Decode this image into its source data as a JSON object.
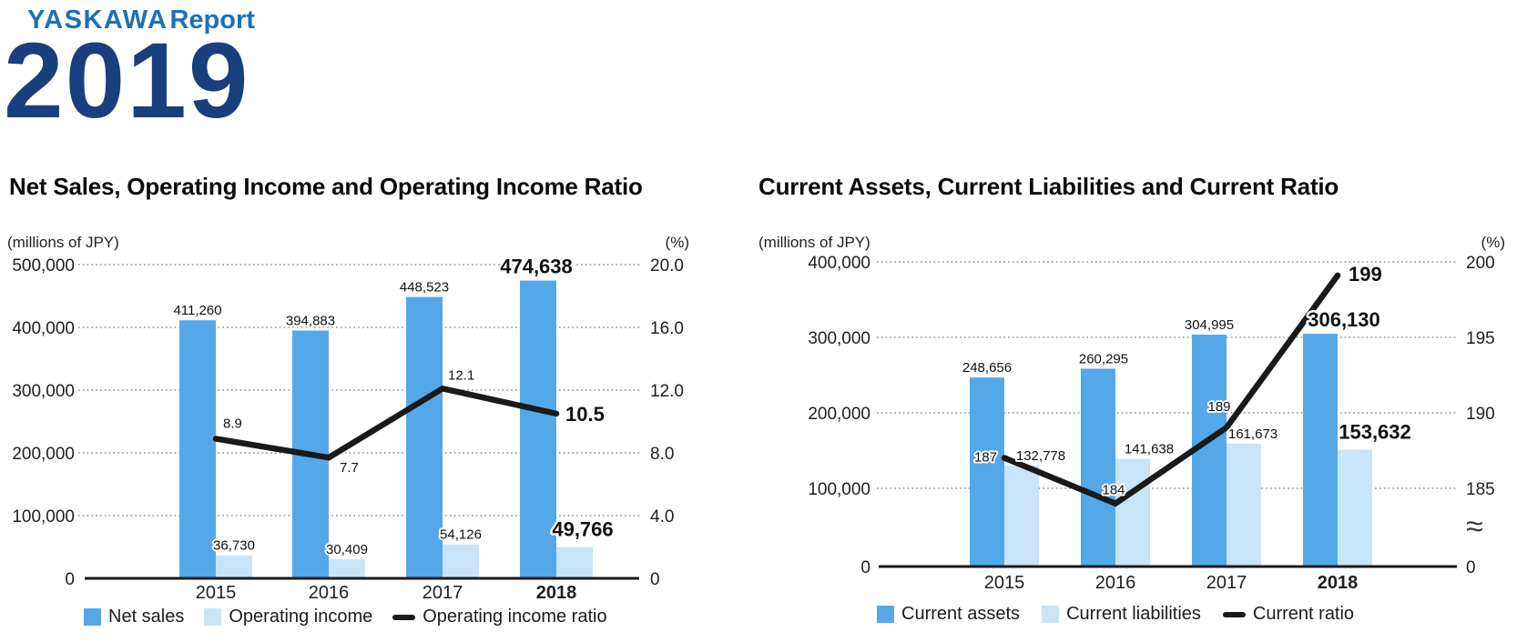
{
  "logo": {
    "brand": "YASKAWA",
    "suffix": "Report",
    "year": "2019"
  },
  "colors": {
    "bar_primary": "#54A8E8",
    "bar_secondary": "#C8E4F8",
    "line": "#1a1a1a",
    "logo_blue": "#1b71ba",
    "logo_navy": "#1a3f7e",
    "grid": "#787878"
  },
  "chart_data": [
    {
      "type": "bar",
      "title": "Net Sales, Operating Income and Operating Income Ratio",
      "legend_position": "bottom",
      "grid": "dotted-horizontal",
      "categories": [
        "2015",
        "2016",
        "2017",
        "2018"
      ],
      "left_axis": {
        "unit": "(millions of JPY)",
        "ticks": [
          "500,000",
          "400,000",
          "300,000",
          "200,000",
          "100,000",
          "0"
        ],
        "range": [
          0,
          500000
        ]
      },
      "right_axis": {
        "unit": "(%)",
        "ticks": [
          "20.0",
          "16.0",
          "12.0",
          "8.0",
          "4.0",
          "0"
        ],
        "range": [
          0,
          20
        ]
      },
      "series": [
        {
          "name": "Net sales",
          "kind": "bar",
          "role": "primary",
          "values": [
            411260,
            394883,
            448523,
            474638
          ],
          "labels": [
            "411,260",
            "394,883",
            "448,523",
            "474,638"
          ]
        },
        {
          "name": "Operating income",
          "kind": "bar",
          "role": "secondary",
          "values": [
            36730,
            30409,
            54126,
            49766
          ],
          "labels": [
            "36,730",
            "30,409",
            "54,126",
            "49,766"
          ]
        },
        {
          "name": "Operating income ratio",
          "kind": "line",
          "role": "line",
          "values": [
            8.9,
            7.7,
            12.1,
            10.5
          ],
          "labels": [
            "8.9",
            "7.7",
            "12.1",
            "10.5"
          ]
        }
      ],
      "legend": [
        {
          "label": "Net sales",
          "swatch": "primary"
        },
        {
          "label": "Operating income",
          "swatch": "secondary"
        },
        {
          "label": "Operating income ratio",
          "swatch": "line"
        }
      ]
    },
    {
      "type": "bar",
      "title": "Current Assets, Current Liabilities and Current Ratio",
      "legend_position": "bottom",
      "grid": "dotted-horizontal",
      "categories": [
        "2015",
        "2016",
        "2017",
        "2018"
      ],
      "left_axis": {
        "unit": "(millions of JPY)",
        "ticks": [
          "400,000",
          "300,000",
          "200,000",
          "100,000",
          "0"
        ],
        "range": [
          0,
          400000
        ]
      },
      "right_axis": {
        "unit": "(%)",
        "ticks": [
          "200",
          "195",
          "190",
          "185",
          "≈",
          "0"
        ],
        "range": [
          185,
          200
        ],
        "broken": true,
        "break_symbol": "≈"
      },
      "series": [
        {
          "name": "Current assets",
          "kind": "bar",
          "role": "primary",
          "values": [
            248656,
            260295,
            304995,
            306130
          ],
          "labels": [
            "248,656",
            "260,295",
            "304,995",
            "306,130"
          ]
        },
        {
          "name": "Current liabilities",
          "kind": "bar",
          "role": "secondary",
          "values": [
            132778,
            141638,
            161673,
            153632
          ],
          "labels": [
            "132,778",
            "141,638",
            "161,673",
            "153,632"
          ]
        },
        {
          "name": "Current ratio",
          "kind": "line",
          "role": "line",
          "values": [
            187,
            184,
            189,
            199
          ],
          "labels": [
            "187",
            "184",
            "189",
            "199"
          ]
        }
      ],
      "legend": [
        {
          "label": "Current assets",
          "swatch": "primary"
        },
        {
          "label": "Current liabilities",
          "swatch": "secondary"
        },
        {
          "label": "Current ratio",
          "swatch": "line"
        }
      ]
    }
  ]
}
